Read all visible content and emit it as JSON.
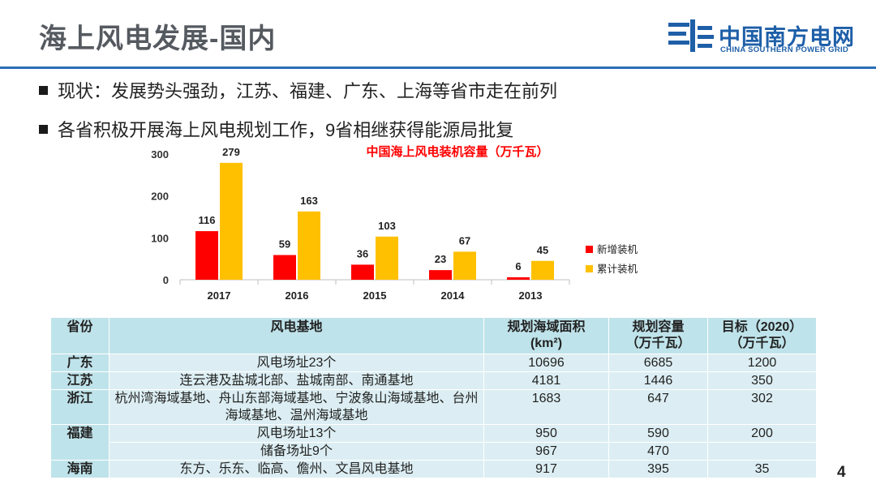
{
  "header": {
    "title": "海上风电发展-国内"
  },
  "logo": {
    "name_cn": "中国南方电网",
    "name_en": "CHINA SOUTHERN POWER GRID"
  },
  "bullets": [
    "现状：发展势头强劲，江苏、福建、广东、上海等省市走在前列",
    "各省积极开展海上风电规划工作，9省相继获得能源局批复"
  ],
  "chart_data": {
    "type": "bar",
    "title": "中国海上风电装机容量（万千瓦）",
    "categories": [
      "2017",
      "2016",
      "2015",
      "2014",
      "2013"
    ],
    "series": [
      {
        "name": "新增装机",
        "values": [
          116,
          59,
          36,
          23,
          6
        ]
      },
      {
        "name": "累计装机",
        "values": [
          279,
          163,
          103,
          67,
          45
        ]
      }
    ],
    "ylim": [
      0,
      300
    ],
    "yticks": [
      0,
      100,
      200,
      300
    ],
    "xlabel": "",
    "ylabel": "",
    "grid": false,
    "legend": "right",
    "colors": [
      "#ff0000",
      "#ffc000"
    ]
  },
  "table": {
    "headers": [
      "省份",
      "风电基地",
      "规划海域面积\n(km²)",
      "规划容量\n（万千瓦）",
      "目标（2020）\n（万千瓦）"
    ],
    "provinces": [
      {
        "name": "广东",
        "rows": [
          [
            "风电场址23个",
            "10696",
            "6685",
            "1200"
          ]
        ]
      },
      {
        "name": "江苏",
        "rows": [
          [
            "连云港及盐城北部、盐城南部、南通基地",
            "4181",
            "1446",
            "350"
          ]
        ]
      },
      {
        "name": "浙江",
        "rows": [
          [
            "杭州湾海域基地、舟山东部海域基地、宁波象山海域基地、台州海域基地、温州海域基地",
            "1683",
            "647",
            "302"
          ]
        ]
      },
      {
        "name": "福建",
        "rows": [
          [
            "风电场址13个",
            "950",
            "590",
            "200"
          ],
          [
            "储备场址9个",
            "967",
            "470",
            ""
          ]
        ]
      },
      {
        "name": "海南",
        "rows": [
          [
            "东方、乐东、临高、儋州、文昌风电基地",
            "917",
            "395",
            "35"
          ]
        ]
      }
    ]
  },
  "page": {
    "number": "4"
  }
}
